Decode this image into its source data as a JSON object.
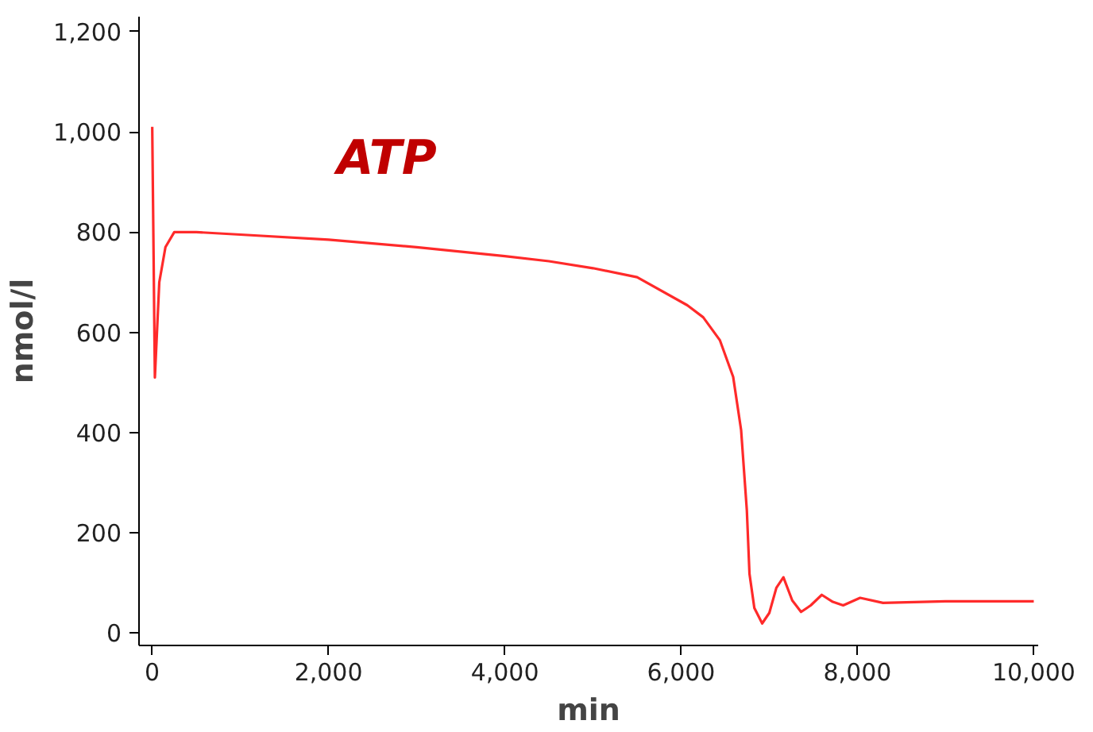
{
  "chart_data": {
    "type": "line",
    "xlabel": "min",
    "ylabel": "nmol/l",
    "xlim": [
      -150,
      10050
    ],
    "ylim": [
      -25,
      1230
    ],
    "xticks": [
      0,
      {
        "value": 2000,
        "label": "2,000"
      },
      {
        "value": 4000,
        "label": "4,000"
      },
      {
        "value": 6000,
        "label": "6,000"
      },
      {
        "value": 8000,
        "label": "8,000"
      },
      {
        "value": 10000,
        "label": "10,000"
      }
    ],
    "yticks": [
      0,
      200,
      400,
      600,
      800,
      {
        "value": 1000,
        "label": "1,000"
      },
      {
        "value": 1200,
        "label": "1,200"
      }
    ],
    "grid": false,
    "marker": "none",
    "line_style": "solid",
    "series": [
      {
        "name": "ATP",
        "color": "#ff2a2a",
        "x": [
          0,
          30,
          80,
          150,
          250,
          500,
          1000,
          2000,
          3000,
          4000,
          4500,
          5000,
          5500,
          6070,
          6250,
          6440,
          6590,
          6680,
          6745,
          6775,
          6830,
          6919,
          7000,
          7080,
          7160,
          7260,
          7360,
          7470,
          7595,
          7720,
          7838,
          8030,
          8290,
          9000,
          10000
        ],
        "values": [
          1010,
          510,
          700,
          770,
          800,
          800,
          795,
          785,
          770,
          752,
          742,
          728,
          710,
          654,
          630,
          584,
          511,
          405,
          245,
          118,
          50,
          19,
          40,
          90,
          111,
          65,
          42,
          55,
          76,
          62,
          55,
          70,
          60,
          63,
          63
        ]
      }
    ]
  }
}
